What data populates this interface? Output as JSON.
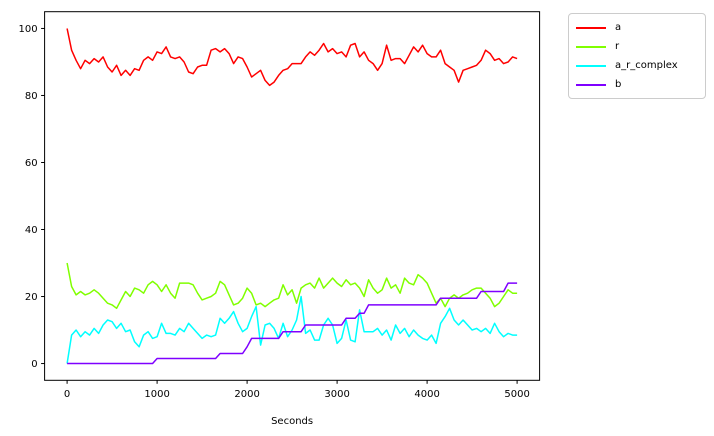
{
  "figure": {
    "background": "#ffffff",
    "axes_edge_color": "#000000",
    "text_color": "#000000"
  },
  "chart_data": {
    "type": "line",
    "title": "",
    "xlabel": "Seconds",
    "ylabel": "",
    "xlim": [
      -250,
      5250
    ],
    "ylim": [
      -5,
      105
    ],
    "xticks": [
      0,
      1000,
      2000,
      3000,
      4000,
      5000
    ],
    "yticks": [
      0,
      20,
      40,
      60,
      80,
      100
    ],
    "grid": false,
    "legend_position": "outside-upper-right",
    "x": [
      0,
      50,
      100,
      150,
      200,
      250,
      300,
      350,
      400,
      450,
      500,
      550,
      600,
      650,
      700,
      750,
      800,
      850,
      900,
      950,
      1000,
      1050,
      1100,
      1150,
      1200,
      1250,
      1300,
      1350,
      1400,
      1450,
      1500,
      1550,
      1600,
      1650,
      1700,
      1750,
      1800,
      1850,
      1900,
      1950,
      2000,
      2050,
      2100,
      2150,
      2200,
      2250,
      2300,
      2350,
      2400,
      2450,
      2500,
      2550,
      2600,
      2650,
      2700,
      2750,
      2800,
      2850,
      2900,
      2950,
      3000,
      3050,
      3100,
      3150,
      3200,
      3250,
      3300,
      3350,
      3400,
      3450,
      3500,
      3550,
      3600,
      3650,
      3700,
      3750,
      3800,
      3850,
      3900,
      3950,
      4000,
      4050,
      4100,
      4150,
      4200,
      4250,
      4300,
      4350,
      4400,
      4450,
      4500,
      4550,
      4600,
      4650,
      4700,
      4750,
      4800,
      4850,
      4900,
      4950,
      5000
    ],
    "series": [
      {
        "name": "a",
        "color": "#ff0000",
        "values": [
          100,
          93.5,
          90.5,
          88,
          90.5,
          89.5,
          91,
          90,
          91.5,
          88.5,
          87,
          89,
          86,
          87.5,
          86,
          88,
          87.5,
          90.5,
          91.5,
          90.5,
          93,
          92.5,
          94.5,
          91.5,
          91,
          91.5,
          90,
          87,
          86.5,
          88.5,
          89,
          89,
          93.5,
          94,
          93,
          94,
          92.5,
          89.5,
          91.5,
          91,
          88.5,
          85.5,
          86.5,
          87.5,
          84.5,
          83,
          84,
          86,
          87.5,
          88,
          89.5,
          89.5,
          89.5,
          91.5,
          93,
          92,
          93.5,
          95.5,
          93,
          94,
          92.5,
          93,
          91.5,
          95,
          95.5,
          91.5,
          93,
          90.5,
          89.5,
          87.5,
          89.5,
          95,
          90.5,
          91,
          91,
          89.5,
          92,
          94.5,
          93,
          95,
          92.5,
          91.5,
          91.5,
          93.5,
          89.5,
          88.5,
          87.5,
          84,
          87.5,
          88,
          88.5,
          89,
          90.5,
          93.5,
          92.5,
          90.5,
          91,
          89.5,
          90,
          91.5,
          91
        ]
      },
      {
        "name": "r",
        "color": "#80ff00",
        "values": [
          30,
          23,
          20.5,
          21.5,
          20.5,
          21,
          22,
          21,
          19.5,
          18,
          17.5,
          16.5,
          19,
          21.5,
          20,
          22.5,
          22,
          21,
          23.5,
          24.5,
          23.5,
          21.5,
          23.5,
          21,
          19.5,
          24,
          24,
          24,
          23.5,
          21,
          19,
          19.5,
          20,
          21,
          24.5,
          23.5,
          20.5,
          17.5,
          18,
          19.5,
          22.5,
          21,
          17.5,
          18,
          17,
          18,
          19,
          19.5,
          23.5,
          20.5,
          22,
          18,
          22.5,
          23.5,
          24,
          22.5,
          25.5,
          22.5,
          24,
          25.5,
          24,
          23,
          25,
          23.5,
          24,
          22.5,
          20,
          25,
          22.5,
          21,
          22,
          25.5,
          22.5,
          23.5,
          21,
          25.5,
          24,
          23.5,
          26.5,
          25.5,
          24,
          21,
          18,
          19.5,
          17,
          19.5,
          20.5,
          19.5,
          20.5,
          21,
          22,
          22.5,
          22.5,
          21,
          19.5,
          17,
          18,
          20,
          22,
          21,
          21
        ]
      },
      {
        "name": "a_r_complex",
        "color": "#00ffff",
        "values": [
          0,
          8.5,
          10,
          8,
          9.5,
          8.5,
          10.5,
          9,
          11.5,
          13,
          12.5,
          10.5,
          12,
          9.5,
          10,
          6.5,
          5,
          8.5,
          9.5,
          7.5,
          8,
          12,
          9,
          9,
          8.5,
          10.5,
          9.5,
          12,
          10.5,
          9,
          7.5,
          8.5,
          8,
          8.5,
          13.5,
          12,
          13.5,
          15.5,
          12,
          9.5,
          10.5,
          14,
          17,
          5.5,
          11.5,
          12,
          10.5,
          7.5,
          12,
          8,
          10,
          13,
          20,
          9,
          10,
          7,
          7,
          11.5,
          13.5,
          11.5,
          6,
          7.5,
          13,
          7,
          6.5,
          16,
          9.5,
          9.5,
          9.5,
          10.5,
          8.5,
          10,
          7,
          11.5,
          9,
          10.5,
          8,
          10,
          8.5,
          7.5,
          7,
          8.5,
          6,
          12,
          14,
          16.5,
          13,
          11.5,
          13,
          11.5,
          10,
          10.5,
          9.5,
          10.5,
          9,
          12,
          9.5,
          8,
          9,
          8.5,
          8.5
        ]
      },
      {
        "name": "b",
        "color": "#7f00ff",
        "values": [
          0,
          0,
          0,
          0,
          0,
          0,
          0,
          0,
          0,
          0,
          0,
          0,
          0,
          0,
          0,
          0,
          0,
          0,
          0,
          0,
          1.5,
          1.5,
          1.5,
          1.5,
          1.5,
          1.5,
          1.5,
          1.5,
          1.5,
          1.5,
          1.5,
          1.5,
          1.5,
          1.5,
          3,
          3,
          3,
          3,
          3,
          3,
          5,
          7.5,
          7.5,
          7.5,
          7.5,
          7.5,
          7.5,
          7.5,
          9.5,
          9.5,
          9.5,
          9.5,
          9.5,
          11.5,
          11.5,
          11.5,
          11.5,
          11.5,
          11.5,
          11.5,
          11.5,
          11.5,
          13.5,
          13.5,
          13.5,
          15,
          15,
          17.5,
          17.5,
          17.5,
          17.5,
          17.5,
          17.5,
          17.5,
          17.5,
          17.5,
          17.5,
          17.5,
          17.5,
          17.5,
          17.5,
          17.5,
          17.5,
          19.5,
          19.5,
          19.5,
          19.5,
          19.5,
          19.5,
          19.5,
          19.5,
          19.5,
          21.5,
          21.5,
          21.5,
          21.5,
          21.5,
          21.5,
          24,
          24,
          24
        ]
      }
    ]
  },
  "legend": {
    "labels": [
      "a",
      "r",
      "a_r_complex",
      "b"
    ]
  }
}
